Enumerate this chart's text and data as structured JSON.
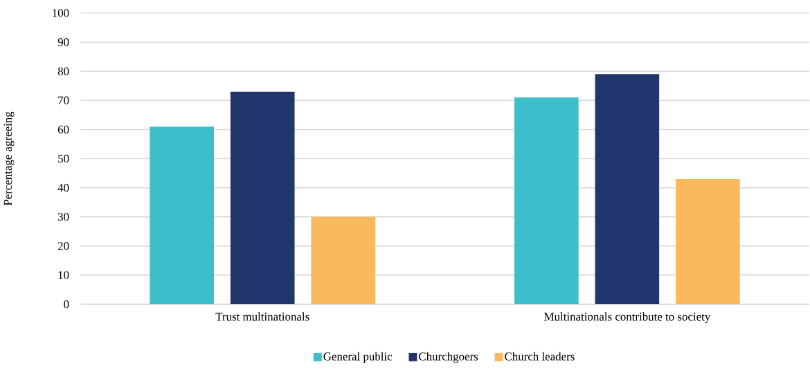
{
  "chart_data": {
    "type": "bar",
    "ylabel": "Percentage agreeing",
    "categories": [
      "Trust multinationals",
      "Multinationals contribute to society"
    ],
    "series": [
      {
        "name": "General public",
        "color": "#3dbfcb",
        "values": [
          61,
          71
        ]
      },
      {
        "name": "Churchgoers",
        "color": "#22366e",
        "values": [
          73,
          79
        ]
      },
      {
        "name": "Church leaders",
        "color": "#fbb95d",
        "values": [
          30,
          43
        ]
      }
    ],
    "ylim": [
      0,
      100
    ],
    "yticks": [
      0,
      10,
      20,
      30,
      40,
      50,
      60,
      70,
      80,
      90,
      100
    ],
    "grid": "y",
    "legend": "bottom"
  }
}
